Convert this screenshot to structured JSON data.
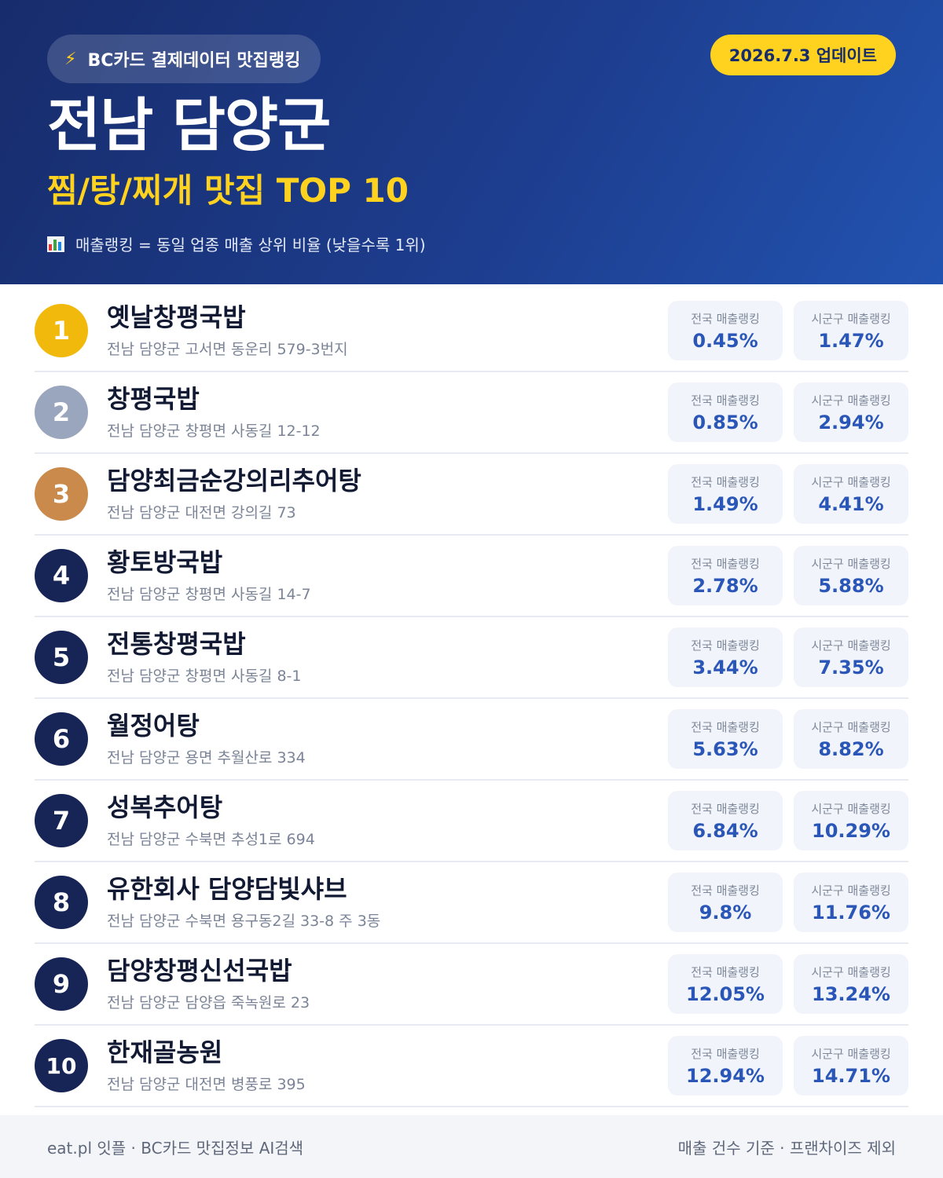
{
  "header": {
    "source_label": "BC카드 결제데이터 맛집랭킹",
    "update_label": "2026.7.3 업데이트",
    "region": "전남 담양군",
    "category": "찜/탕/찌개 맛집 TOP 10",
    "note": "매출랭킹 = 동일 업종 매출 상위 비율 (낮을수록 1위)",
    "icons": [
      "lightning-icon",
      "bar-chart-icon"
    ]
  },
  "stat_labels": {
    "national": "전국 매출랭킹",
    "local": "시군구 매출랭킹"
  },
  "colors": {
    "header_dark": "#172c6b",
    "accent_yellow": "#ffd21f",
    "rank_navy": "#172556",
    "rank_gold": "#f2b90d",
    "rank_silver": "#9aa6bd",
    "rank_bronze": "#c98a4b",
    "value_blue": "#2a56b8"
  },
  "restaurants": [
    {
      "rank": "1",
      "name": "옛날창평국밥",
      "address": "전남 담양군 고서면 동운리 579-3번지",
      "national": "0.45%",
      "local": "1.47%"
    },
    {
      "rank": "2",
      "name": "창평국밥",
      "address": "전남 담양군 창평면 사동길 12-12",
      "national": "0.85%",
      "local": "2.94%"
    },
    {
      "rank": "3",
      "name": "담양최금순강의리추어탕",
      "address": "전남 담양군 대전면 강의길 73",
      "national": "1.49%",
      "local": "4.41%"
    },
    {
      "rank": "4",
      "name": "황토방국밥",
      "address": "전남 담양군 창평면 사동길 14-7",
      "national": "2.78%",
      "local": "5.88%"
    },
    {
      "rank": "5",
      "name": "전통창평국밥",
      "address": "전남 담양군 창평면 사동길 8-1",
      "national": "3.44%",
      "local": "7.35%"
    },
    {
      "rank": "6",
      "name": "월정어탕",
      "address": "전남 담양군 용면 추월산로 334",
      "national": "5.63%",
      "local": "8.82%"
    },
    {
      "rank": "7",
      "name": "성복추어탕",
      "address": "전남 담양군 수북면 추성1로 694",
      "national": "6.84%",
      "local": "10.29%"
    },
    {
      "rank": "8",
      "name": "유한회사 담양담빛샤브",
      "address": "전남 담양군 수북면 용구동2길 33-8 주 3동",
      "national": "9.8%",
      "local": "11.76%"
    },
    {
      "rank": "9",
      "name": "담양창평신선국밥",
      "address": "전남 담양군 담양읍 죽녹원로 23",
      "national": "12.05%",
      "local": "13.24%"
    },
    {
      "rank": "10",
      "name": "한재골농원",
      "address": "전남 담양군 대전면 병풍로 395",
      "national": "12.94%",
      "local": "14.71%"
    }
  ],
  "footer": {
    "left": "eat.pl 잇플 · BC카드 맛집정보 AI검색",
    "right": "매출 건수 기준 · 프랜차이즈 제외"
  }
}
